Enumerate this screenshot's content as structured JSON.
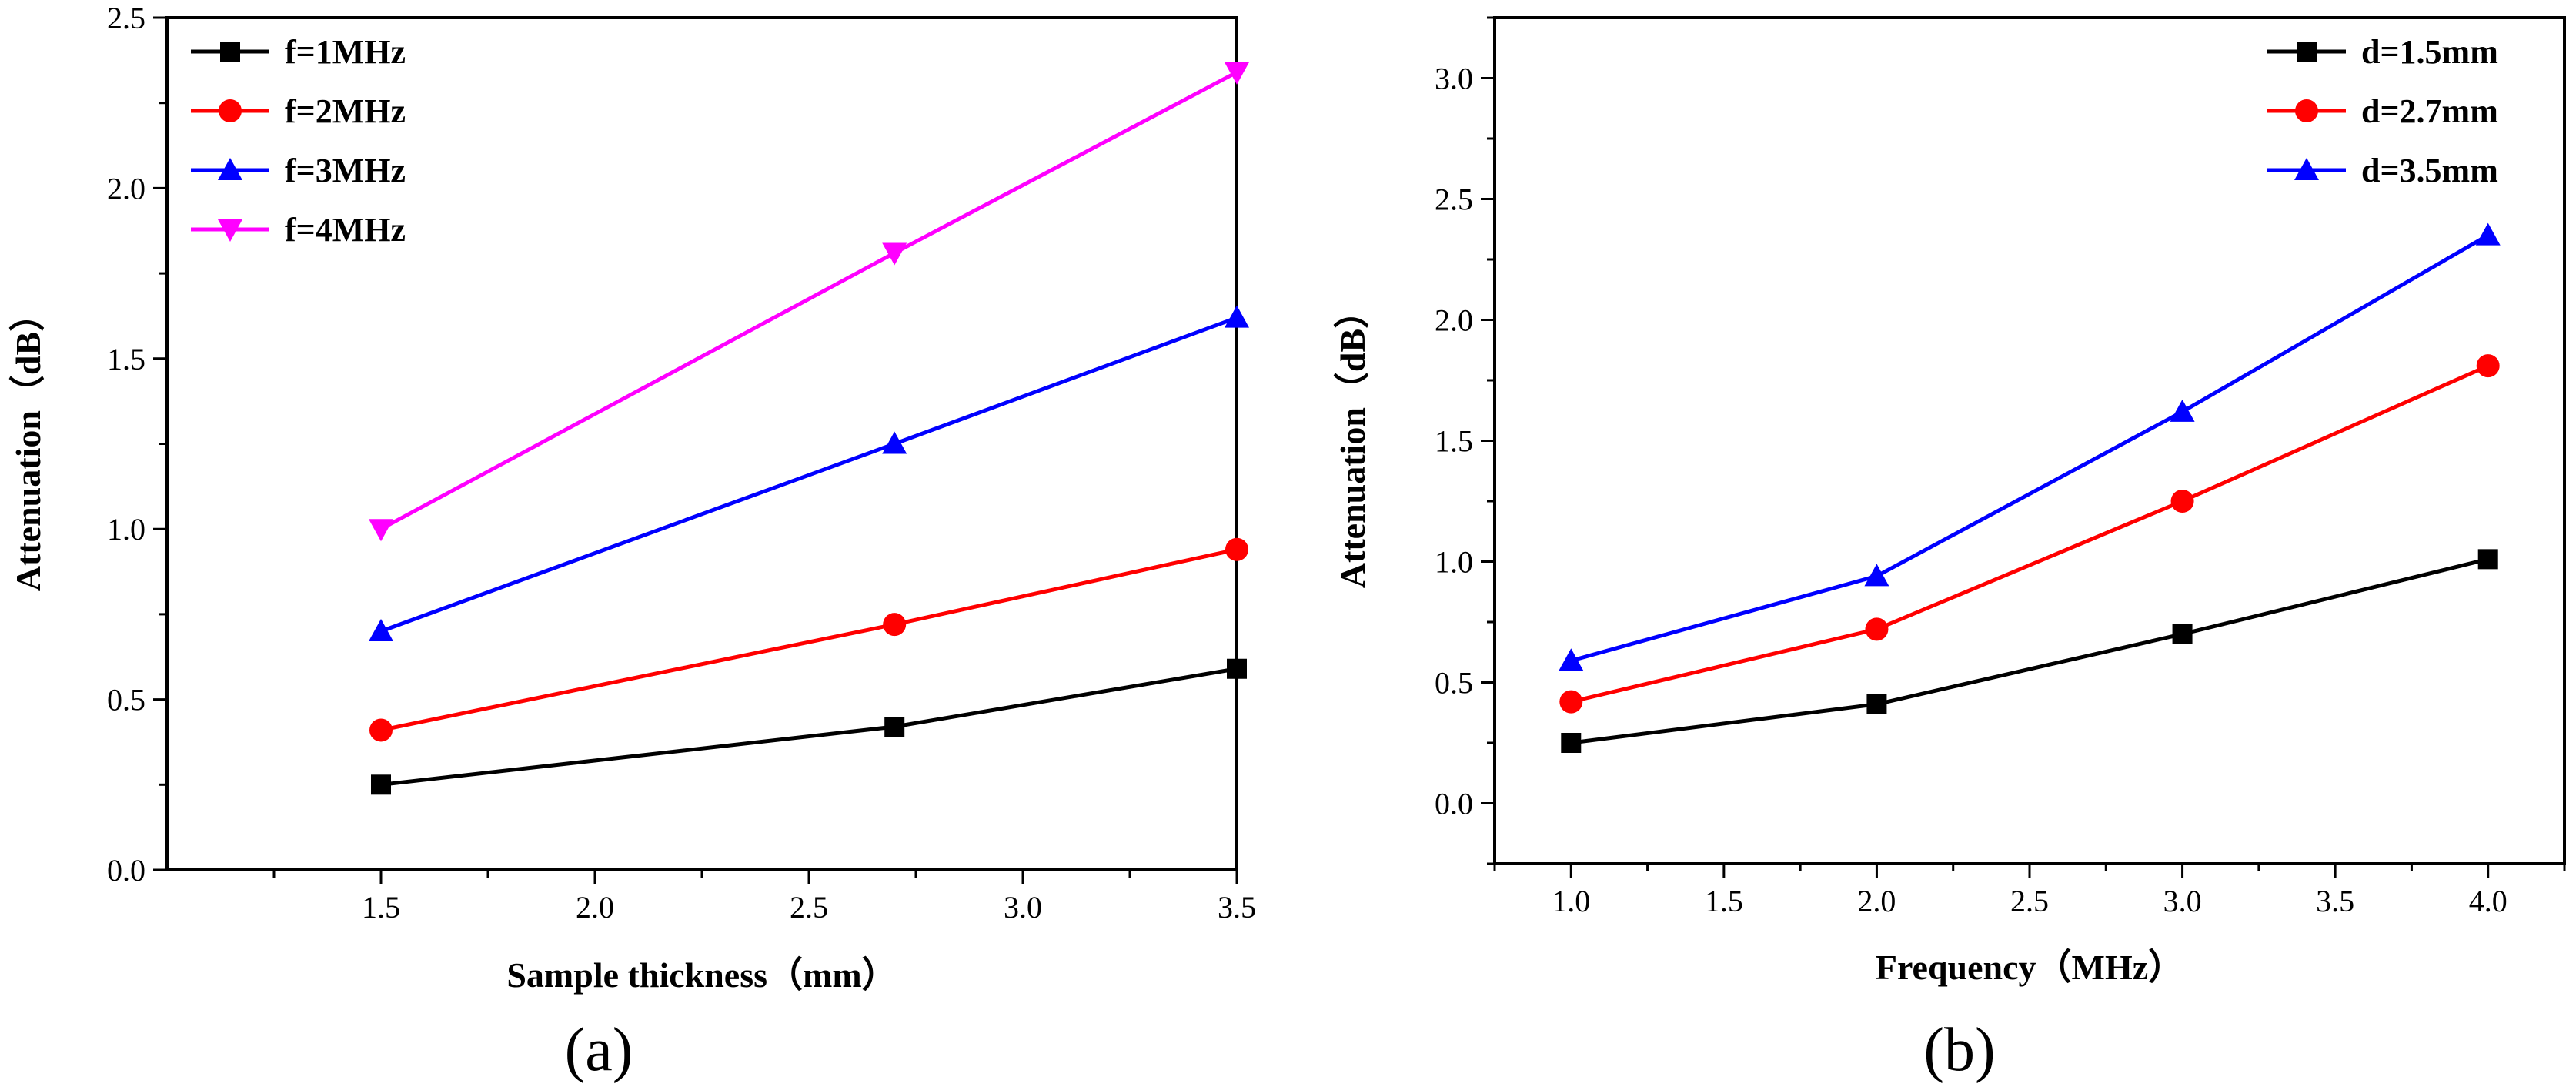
{
  "chart_data": [
    {
      "type": "line",
      "caption": "(a)",
      "xlabel": "Sample thickness（mm）",
      "ylabel": "Attenuation（dB）",
      "x": [
        1.5,
        2.7,
        3.5
      ],
      "xlim": [
        1.0,
        3.5
      ],
      "ylim": [
        0.0,
        2.5
      ],
      "xticks": [
        1.5,
        2.0,
        2.5,
        3.0,
        3.5
      ],
      "xtick_labels": [
        "1.5",
        "2.0",
        "2.5",
        "3.0",
        "3.5"
      ],
      "yticks": [
        0.0,
        0.5,
        1.0,
        1.5,
        2.0,
        2.5
      ],
      "ytick_labels": [
        "0.0",
        "0.5",
        "1.0",
        "1.5",
        "2.0",
        "2.5"
      ],
      "grid": false,
      "legend_position": "top-left",
      "series": [
        {
          "name": "f=1MHz",
          "color": "#000000",
          "marker": "square",
          "values": [
            0.25,
            0.42,
            0.59
          ]
        },
        {
          "name": "f=2MHz",
          "color": "#ff0000",
          "marker": "circle",
          "values": [
            0.41,
            0.72,
            0.94
          ]
        },
        {
          "name": "f=3MHz",
          "color": "#0000ff",
          "marker": "triangle-up",
          "values": [
            0.7,
            1.25,
            1.62
          ]
        },
        {
          "name": "f=4MHz",
          "color": "#ff00ff",
          "marker": "triangle-down",
          "values": [
            1.0,
            1.81,
            2.34
          ]
        }
      ]
    },
    {
      "type": "line",
      "caption": "(b)",
      "xlabel": "Frequency（MHz）",
      "ylabel": "Attenuation（dB）",
      "x": [
        1.0,
        2.0,
        3.0,
        4.0
      ],
      "xlim": [
        0.75,
        4.25
      ],
      "ylim": [
        -0.25,
        3.25
      ],
      "xticks": [
        1.0,
        1.5,
        2.0,
        2.5,
        3.0,
        3.5,
        4.0
      ],
      "xtick_labels": [
        "1.0",
        "1.5",
        "2.0",
        "2.5",
        "3.0",
        "3.5",
        "4.0"
      ],
      "yticks": [
        0.0,
        0.5,
        1.0,
        1.5,
        2.0,
        2.5,
        3.0
      ],
      "ytick_labels": [
        "0.0",
        "0.5",
        "1.0",
        "1.5",
        "2.0",
        "2.5",
        "3.0"
      ],
      "grid": false,
      "legend_position": "top-right",
      "series": [
        {
          "name": "d=1.5mm",
          "color": "#000000",
          "marker": "square",
          "values": [
            0.25,
            0.41,
            0.7,
            1.01
          ]
        },
        {
          "name": "d=2.7mm",
          "color": "#ff0000",
          "marker": "circle",
          "values": [
            0.42,
            0.72,
            1.25,
            1.81
          ]
        },
        {
          "name": "d=3.5mm",
          "color": "#0000ff",
          "marker": "triangle-up",
          "values": [
            0.59,
            0.94,
            1.62,
            2.35
          ]
        }
      ]
    }
  ]
}
